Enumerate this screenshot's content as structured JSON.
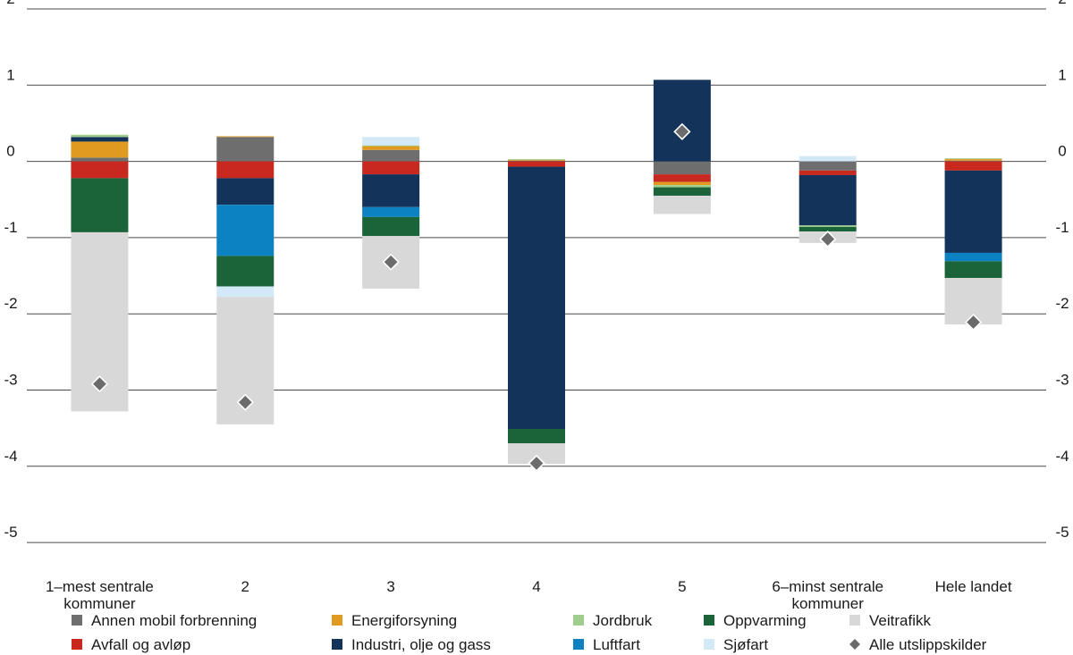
{
  "chart_data": {
    "type": "bar",
    "stacked": true,
    "ylim": [
      -5,
      2
    ],
    "yticks": [
      2,
      1,
      0,
      -1,
      -2,
      -3,
      -4,
      -5
    ],
    "ytick_labels": [
      "2",
      "1",
      "0",
      "-1",
      "-2",
      "-3",
      "-4",
      "-5"
    ],
    "grid": true,
    "categories": [
      [
        "1–mest sentrale",
        "kommuner"
      ],
      [
        "2"
      ],
      [
        "3"
      ],
      [
        "4"
      ],
      [
        "5"
      ],
      [
        "6–minst sentrale",
        "kommuner"
      ],
      [
        "Hele landet"
      ]
    ],
    "series": [
      {
        "key": "annen",
        "name": "Annen mobil forbrenning",
        "color": "#6e6e6e",
        "values": [
          0.05,
          0.32,
          0.15,
          0.01,
          -0.17,
          -0.12,
          0.01
        ]
      },
      {
        "key": "avfall",
        "name": "Avfall og avløp",
        "color": "#c8281e",
        "values": [
          -0.22,
          -0.22,
          -0.17,
          -0.07,
          -0.1,
          -0.06,
          -0.12
        ]
      },
      {
        "key": "energi",
        "name": "Energiforsyning",
        "color": "#e09a20",
        "values": [
          0.21,
          0.01,
          0.05,
          0.01,
          -0.04,
          0.0,
          0.02
        ]
      },
      {
        "key": "industri",
        "name": "Industri, olje og gass",
        "color": "#13335a",
        "values": [
          0.06,
          -0.35,
          -0.43,
          -3.44,
          1.07,
          -0.66,
          -1.08
        ]
      },
      {
        "key": "jordbruk",
        "name": "Jordbruk",
        "color": "#9fcd8c",
        "values": [
          0.03,
          0.0,
          0.01,
          0.01,
          -0.03,
          -0.02,
          0.01
        ]
      },
      {
        "key": "luftfart",
        "name": "Luftfart",
        "color": "#0d82c3",
        "values": [
          0.0,
          -0.67,
          -0.13,
          0.0,
          0.0,
          0.0,
          -0.11
        ]
      },
      {
        "key": "oppvarming",
        "name": "Oppvarming",
        "color": "#1b6338",
        "values": [
          -0.71,
          -0.4,
          -0.25,
          -0.19,
          -0.11,
          -0.06,
          -0.22
        ]
      },
      {
        "key": "sjofart",
        "name": "Sjøfart",
        "color": "#d3e9f7",
        "values": [
          0.0,
          -0.14,
          0.11,
          0.0,
          0.0,
          0.07,
          0.0
        ]
      },
      {
        "key": "veitrafikk",
        "name": "Veitrafikk",
        "color": "#d8d8d8",
        "values": [
          -2.35,
          -1.67,
          -0.69,
          -0.27,
          -0.24,
          -0.15,
          -0.61
        ]
      }
    ],
    "total": {
      "name": "Alle utslippskilder",
      "color": "#6b6b6b",
      "values": [
        -2.92,
        -3.16,
        -1.32,
        -3.96,
        0.39,
        -1.02,
        -2.11
      ]
    },
    "legend": {
      "position": "bottom",
      "order": [
        "annen",
        "energi",
        "jordbruk",
        "oppvarming",
        "veitrafikk",
        "avfall",
        "industri",
        "luftfart",
        "sjofart",
        "total"
      ]
    }
  }
}
